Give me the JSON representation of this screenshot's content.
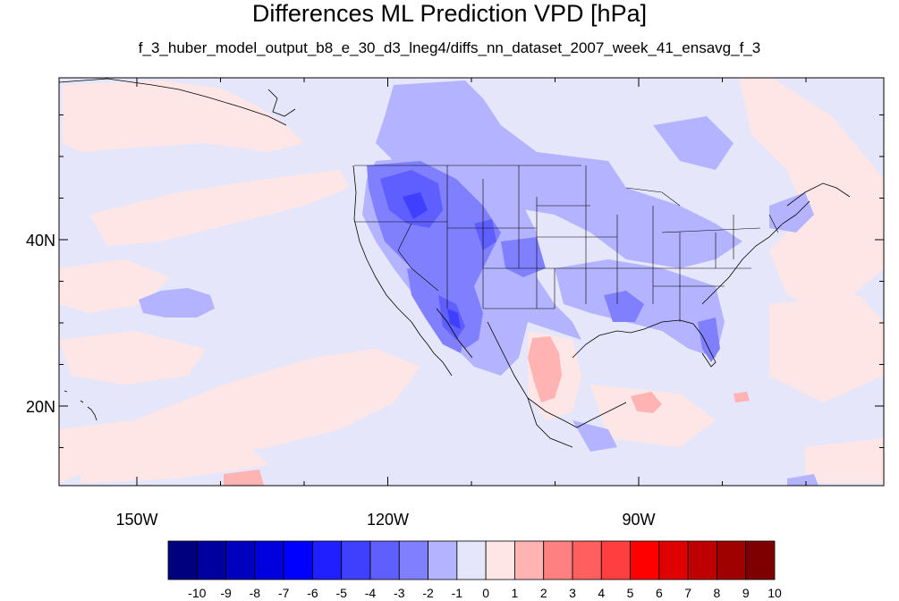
{
  "title": "Differences ML Prediction VPD [hPa]",
  "subtitle": "f_3_huber_model_output_b8_e_30_d3_lneg4/diffs_nn_dataset_2007_week_41_ensavg_f_3",
  "map": {
    "x_ticks": [
      {
        "label": "150W",
        "lon": -150
      },
      {
        "label": "120W",
        "lon": -120
      },
      {
        "label": "90W",
        "lon": -90
      }
    ],
    "y_ticks": [
      {
        "label": "40N",
        "lat": 40
      },
      {
        "label": "20N",
        "lat": 20
      }
    ],
    "background_color": "#e6e6fa"
  },
  "colorbar": {
    "labels": [
      "-10",
      "-9",
      "-8",
      "-7",
      "-6",
      "-5",
      "-4",
      "-3",
      "-2",
      "-1",
      "0",
      "1",
      "2",
      "3",
      "4",
      "5",
      "6",
      "7",
      "8",
      "9",
      "10"
    ],
    "colors": [
      "#00007f",
      "#00009f",
      "#0000bf",
      "#0000df",
      "#0000ff",
      "#1f1fff",
      "#3f3fff",
      "#5f5fff",
      "#8080ff",
      "#b3b3ff",
      "#e6e6fa",
      "#ffe6e6",
      "#ffb3b3",
      "#ff8080",
      "#ff5f5f",
      "#ff3f3f",
      "#ff0000",
      "#df0000",
      "#bf0000",
      "#9f0000",
      "#7f0000"
    ]
  }
}
